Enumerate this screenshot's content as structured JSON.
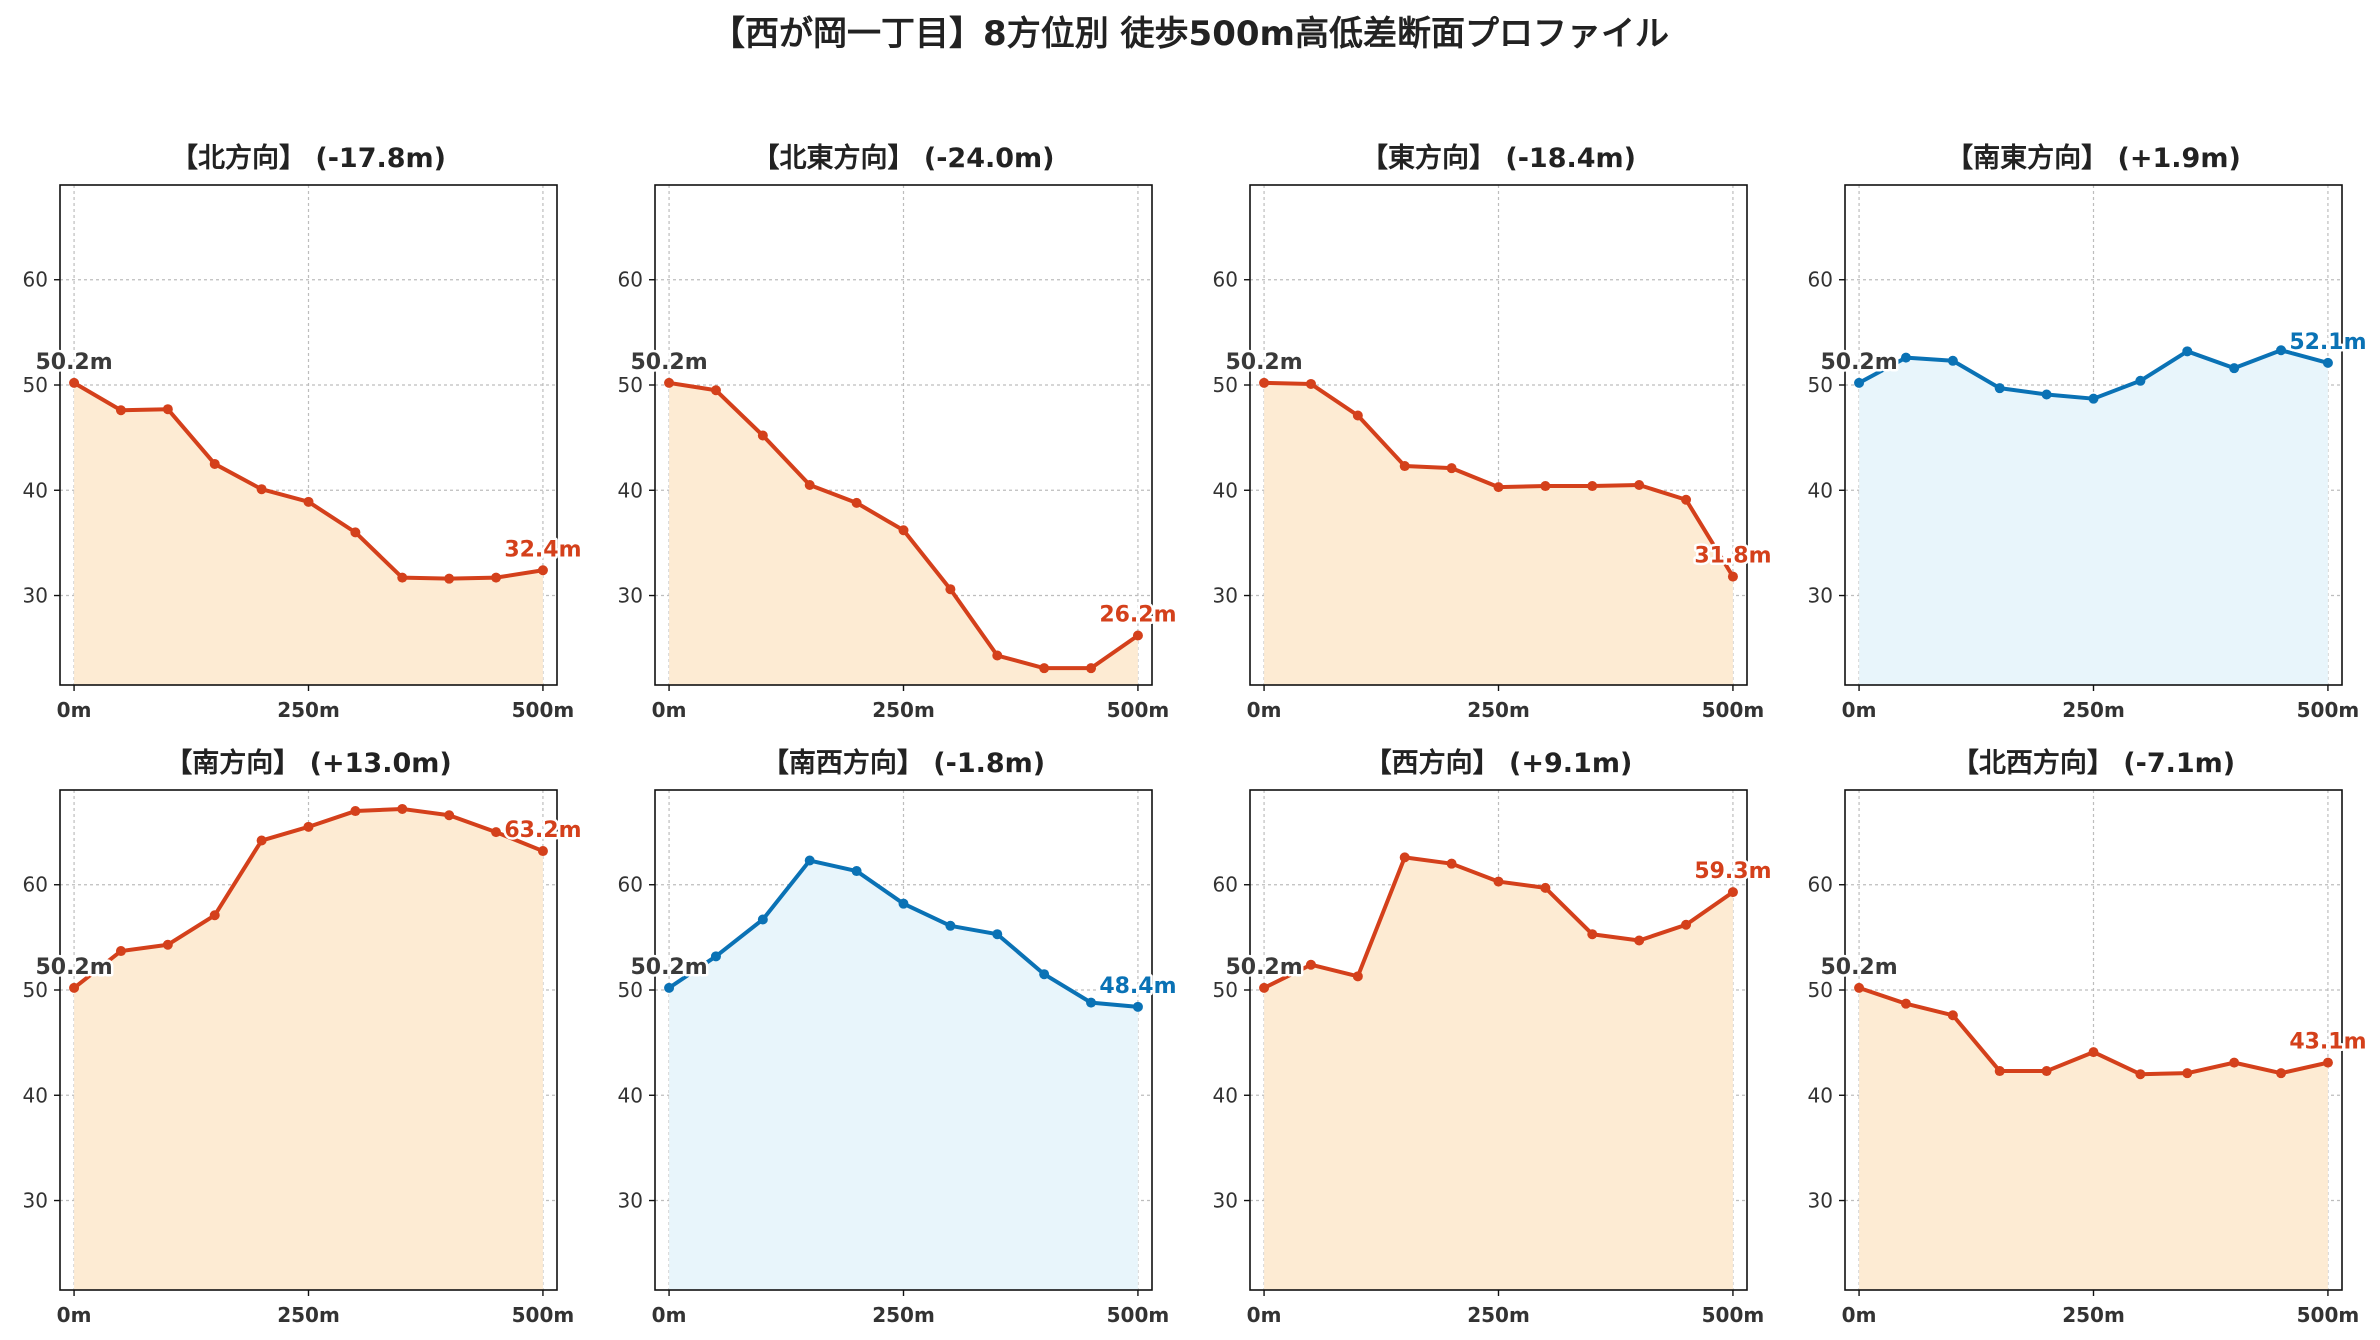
{
  "title": "【西が岡一丁目】8方位別 徒歩500m高低差断面プロファイル",
  "colors": {
    "down": "#d4401b",
    "up": "#0a72b5",
    "down_fill": "#fdebd3",
    "up_fill": "#e8f5fb",
    "start_label": "#3a3a3a",
    "grid": "#bdbdbd",
    "axis_text": "#333333"
  },
  "chart_data": [
    {
      "type": "area",
      "title": "【北方向】 (-17.8m)",
      "x": [
        0,
        50,
        100,
        150,
        200,
        250,
        300,
        350,
        400,
        450,
        500
      ],
      "values": [
        50.2,
        47.6,
        47.7,
        42.5,
        40.1,
        38.9,
        36.0,
        31.7,
        31.6,
        31.7,
        32.4
      ],
      "start_label": "50.2m",
      "end_label": "32.4m",
      "trend": "down",
      "xticks": [
        "0m",
        "250m",
        "500m"
      ],
      "yticks": [
        30,
        40,
        50,
        60
      ],
      "ylim": [
        21.5,
        69
      ],
      "grid": true
    },
    {
      "type": "area",
      "title": "【北東方向】 (-24.0m)",
      "x": [
        0,
        50,
        100,
        150,
        200,
        250,
        300,
        350,
        400,
        450,
        500
      ],
      "values": [
        50.2,
        49.5,
        45.2,
        40.5,
        38.8,
        36.2,
        30.6,
        24.3,
        23.1,
        23.1,
        26.2
      ],
      "start_label": "50.2m",
      "end_label": "26.2m",
      "trend": "down",
      "xticks": [
        "0m",
        "250m",
        "500m"
      ],
      "yticks": [
        30,
        40,
        50,
        60
      ],
      "ylim": [
        21.5,
        69
      ],
      "grid": true
    },
    {
      "type": "area",
      "title": "【東方向】 (-18.4m)",
      "x": [
        0,
        50,
        100,
        150,
        200,
        250,
        300,
        350,
        400,
        450,
        500
      ],
      "values": [
        50.2,
        50.1,
        47.1,
        42.3,
        42.1,
        40.3,
        40.4,
        40.4,
        40.5,
        39.1,
        31.8
      ],
      "start_label": "50.2m",
      "end_label": "31.8m",
      "trend": "down",
      "xticks": [
        "0m",
        "250m",
        "500m"
      ],
      "yticks": [
        30,
        40,
        50,
        60
      ],
      "ylim": [
        21.5,
        69
      ],
      "grid": true
    },
    {
      "type": "area",
      "title": "【南東方向】 (+1.9m)",
      "x": [
        0,
        50,
        100,
        150,
        200,
        250,
        300,
        350,
        400,
        450,
        500
      ],
      "values": [
        50.2,
        52.6,
        52.3,
        49.7,
        49.1,
        48.7,
        50.4,
        53.2,
        51.6,
        53.3,
        52.1
      ],
      "start_label": "50.2m",
      "end_label": "52.1m",
      "trend": "up",
      "xticks": [
        "0m",
        "250m",
        "500m"
      ],
      "yticks": [
        30,
        40,
        50,
        60
      ],
      "ylim": [
        21.5,
        69
      ],
      "grid": true
    },
    {
      "type": "area",
      "title": "【南方向】 (+13.0m)",
      "x": [
        0,
        50,
        100,
        150,
        200,
        250,
        300,
        350,
        400,
        450,
        500
      ],
      "values": [
        50.2,
        53.7,
        54.3,
        57.1,
        64.2,
        65.5,
        67.0,
        67.2,
        66.6,
        65.0,
        63.2
      ],
      "start_label": "50.2m",
      "end_label": "63.2m",
      "trend": "down",
      "xticks": [
        "0m",
        "250m",
        "500m"
      ],
      "yticks": [
        30,
        40,
        50,
        60
      ],
      "ylim": [
        21.5,
        69
      ],
      "grid": true
    },
    {
      "type": "area",
      "title": "【南西方向】 (-1.8m)",
      "x": [
        0,
        50,
        100,
        150,
        200,
        250,
        300,
        350,
        400,
        450,
        500
      ],
      "values": [
        50.2,
        53.2,
        56.7,
        62.3,
        61.3,
        58.2,
        56.1,
        55.3,
        51.5,
        48.8,
        48.4
      ],
      "start_label": "50.2m",
      "end_label": "48.4m",
      "trend": "up",
      "xticks": [
        "0m",
        "250m",
        "500m"
      ],
      "yticks": [
        30,
        40,
        50,
        60
      ],
      "ylim": [
        21.5,
        69
      ],
      "grid": true
    },
    {
      "type": "area",
      "title": "【西方向】 (+9.1m)",
      "x": [
        0,
        50,
        100,
        150,
        200,
        250,
        300,
        350,
        400,
        450,
        500
      ],
      "values": [
        50.2,
        52.4,
        51.3,
        62.6,
        62.0,
        60.3,
        59.7,
        55.3,
        54.7,
        56.2,
        59.3
      ],
      "start_label": "50.2m",
      "end_label": "59.3m",
      "trend": "down",
      "xticks": [
        "0m",
        "250m",
        "500m"
      ],
      "yticks": [
        30,
        40,
        50,
        60
      ],
      "ylim": [
        21.5,
        69
      ],
      "grid": true
    },
    {
      "type": "area",
      "title": "【北西方向】 (-7.1m)",
      "x": [
        0,
        50,
        100,
        150,
        200,
        250,
        300,
        350,
        400,
        450,
        500
      ],
      "values": [
        50.2,
        48.7,
        47.6,
        42.3,
        42.3,
        44.1,
        42.0,
        42.1,
        43.1,
        42.1,
        43.1
      ],
      "start_label": "50.2m",
      "end_label": "43.1m",
      "trend": "down",
      "xticks": [
        "0m",
        "250m",
        "500m"
      ],
      "yticks": [
        30,
        40,
        50,
        60
      ],
      "ylim": [
        21.5,
        69
      ],
      "grid": true
    }
  ]
}
